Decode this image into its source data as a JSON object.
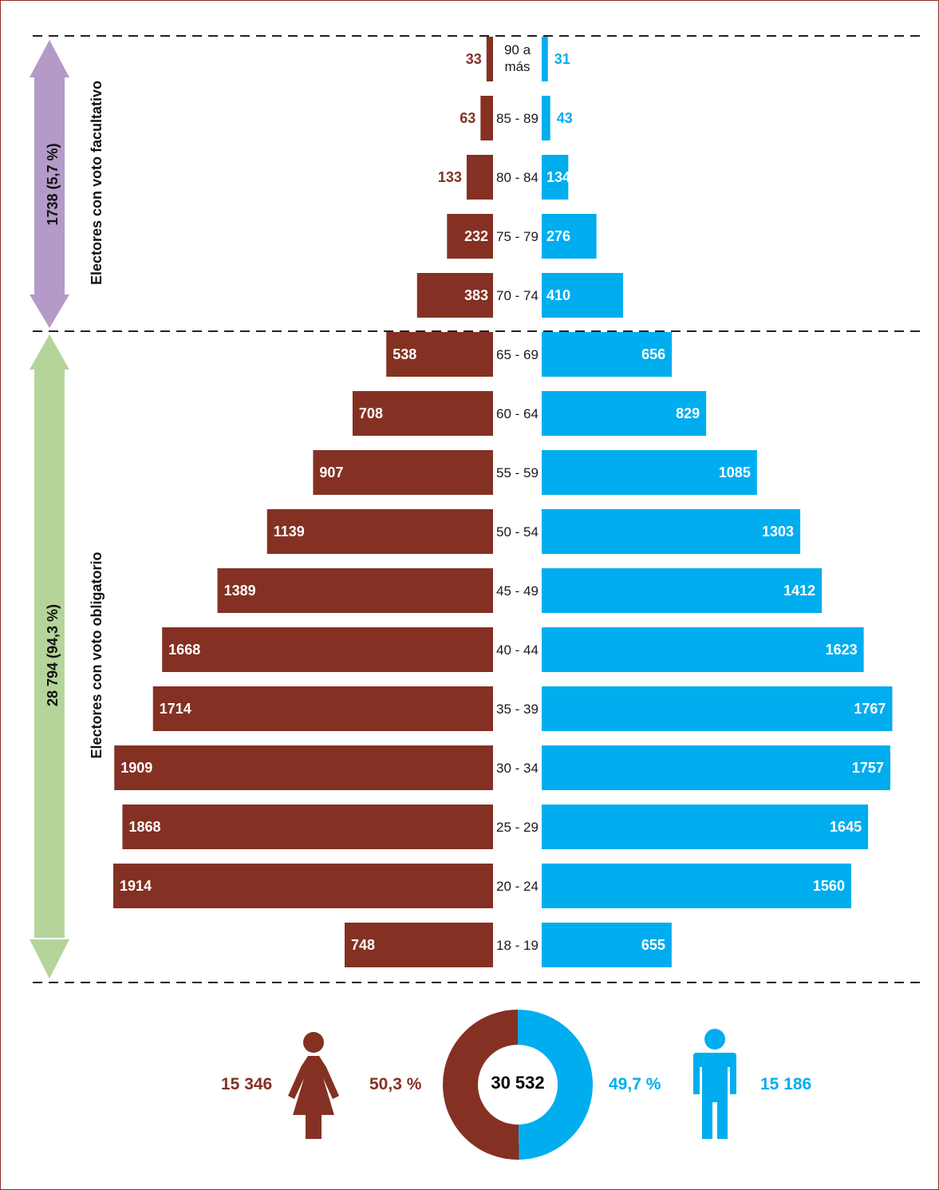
{
  "colors": {
    "female": "#843123",
    "male": "#00adee",
    "facultativo": "#b49ac9",
    "obligatorio": "#b5d49a"
  },
  "sections": {
    "facultativo": {
      "count": "1738 (5,7 %)",
      "label": "Electores con voto facultativo"
    },
    "obligatorio": {
      "count": "28 794 (94,3 %)",
      "label": "Electores con voto obligatorio"
    }
  },
  "chart_data": {
    "type": "bar",
    "subtype": "population-pyramid",
    "categories": [
      "90 a más",
      "85 - 89",
      "80 - 84",
      "75 - 79",
      "70 - 74",
      "65 - 69",
      "60 - 64",
      "55 - 59",
      "50 - 54",
      "45 - 49",
      "40 - 44",
      "35 - 39",
      "30 - 34",
      "25 - 29",
      "20 - 24",
      "18 - 19"
    ],
    "series": [
      {
        "values": [
          33,
          63,
          133,
          232,
          383,
          538,
          708,
          907,
          1139,
          1389,
          1668,
          1714,
          1909,
          1868,
          1914,
          748
        ]
      },
      {
        "values": [
          31,
          43,
          134,
          276,
          410,
          656,
          829,
          1085,
          1303,
          1412,
          1623,
          1767,
          1757,
          1645,
          1560,
          655
        ]
      }
    ],
    "xlim": [
      0,
      1914
    ]
  },
  "summary": {
    "female_total": "15 346",
    "female_pct": "50,3 %",
    "total": "30 532",
    "male_pct": "49,7 %",
    "male_total": "15 186",
    "female_share": 0.503,
    "male_share": 0.497
  }
}
